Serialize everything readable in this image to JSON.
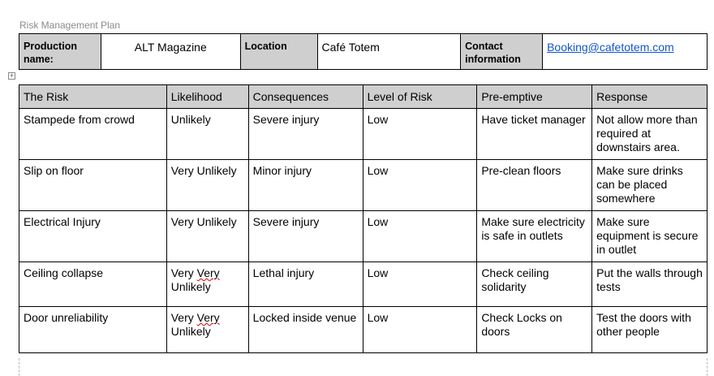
{
  "header": {
    "title": "Risk Management Plan"
  },
  "info": {
    "production_label": "Production name:",
    "production_value": "ALT Magazine",
    "location_label": "Location",
    "location_value": "Café Totem",
    "contact_label": "Contact information",
    "contact_value": "Booking@cafetotem.com"
  },
  "risk_table": {
    "headers": [
      "The Risk",
      "Likelihood",
      "Consequences",
      "Level of Risk",
      "Pre-emptive",
      "Response"
    ],
    "rows": [
      [
        "Stampede from crowd",
        "Unlikely",
        "Severe injury",
        "Low",
        "Have ticket manager",
        "Not allow more than required at downstairs area."
      ],
      [
        "Slip on floor",
        "Very Unlikely",
        "Minor injury",
        "Low",
        "Pre-clean floors",
        "Make sure drinks can be placed somewhere"
      ],
      [
        "Electrical Injury",
        "Very Unlikely",
        "Severe injury",
        "Low",
        "Make sure electricity is safe in outlets",
        "Make sure equipment is secure in outlet"
      ],
      [
        "Ceiling collapse",
        "Very Very Unlikely",
        "Lethal injury",
        "Low",
        "Check ceiling solidarity",
        "Put the walls through tests"
      ],
      [
        "Door unreliability",
        "Very Very Unlikely",
        "Locked inside venue",
        "Low",
        "Check Locks on doors",
        "Test the doors with other people"
      ]
    ],
    "squiggle_word": "Very"
  },
  "icons": {
    "table_move": "move-handle-icon"
  }
}
